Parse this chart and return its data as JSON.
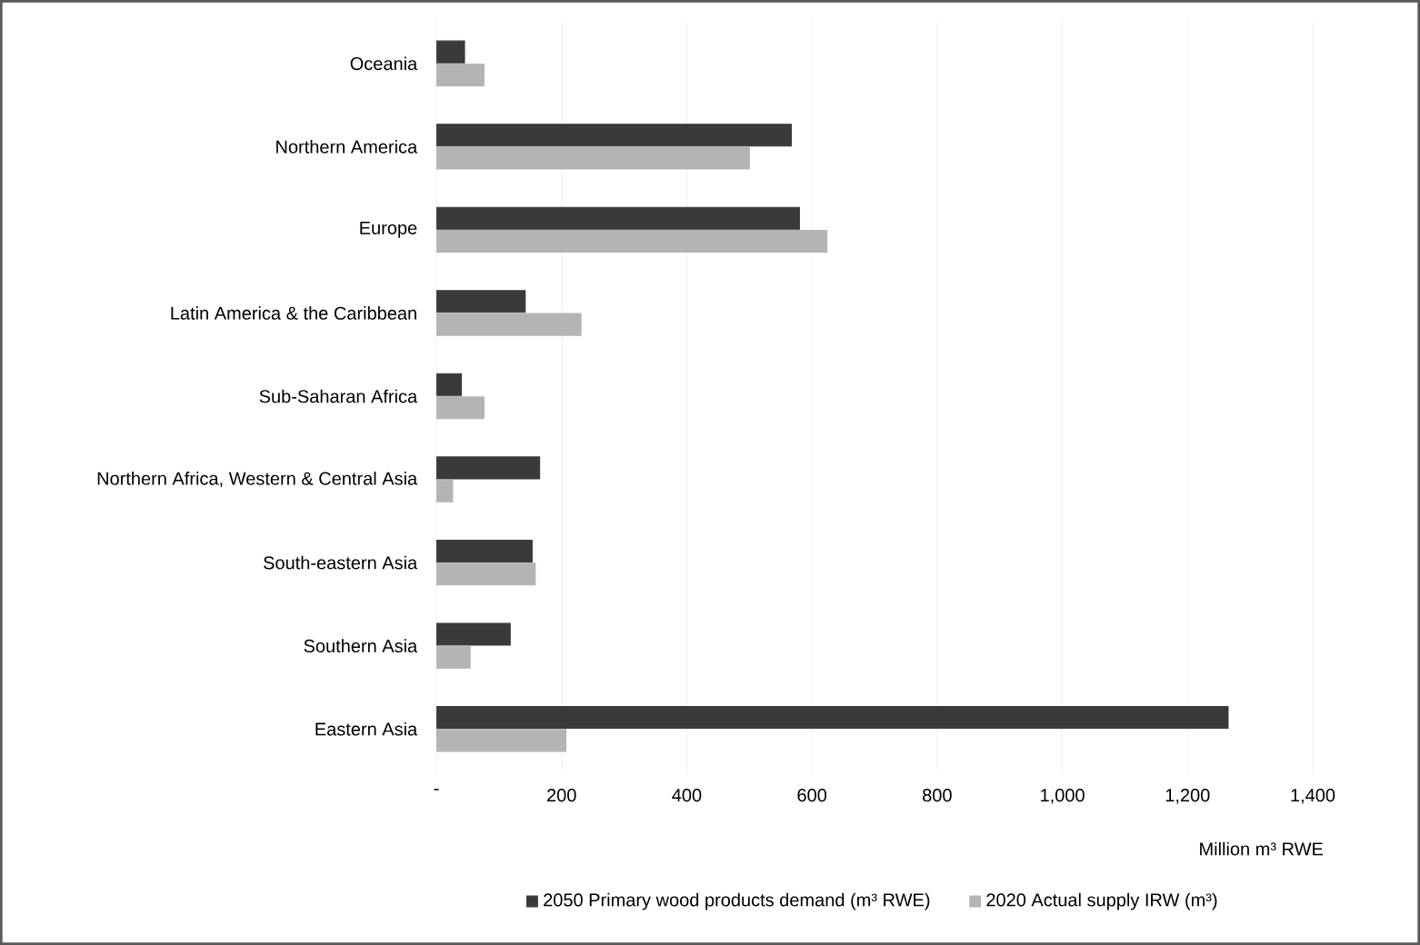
{
  "chart_data": {
    "type": "bar",
    "orientation": "horizontal",
    "xlabel": "Million m³ RWE",
    "categories": [
      "Oceania",
      "Northern America",
      "Europe",
      "Latin America & the Caribbean",
      "Sub-Saharan Africa",
      "Northern Africa, Western & Central Asia",
      "South-eastern Asia",
      "Southern Asia",
      "Eastern Asia"
    ],
    "series": [
      {
        "name": "2050 Primary wood products demand (m³ RWE)",
        "color": "#3a3a3a",
        "values": [
          45,
          567,
          580,
          142,
          40,
          165,
          153,
          118,
          1265
        ]
      },
      {
        "name": "2020 Actual supply IRW (m³)",
        "color": "#b4b4b4",
        "values": [
          76,
          500,
          624,
          231,
          76,
          26,
          158,
          54,
          207
        ]
      }
    ],
    "xlim": [
      0,
      1400
    ],
    "xticks": [
      {
        "value": 0,
        "label": "-"
      },
      200,
      400,
      600,
      800,
      {
        "value": 1000,
        "label": "1,000"
      },
      {
        "value": 1200,
        "label": "1,200"
      },
      {
        "value": 1400,
        "label": "1,400"
      }
    ],
    "grid": "x",
    "legend": "bottom"
  }
}
